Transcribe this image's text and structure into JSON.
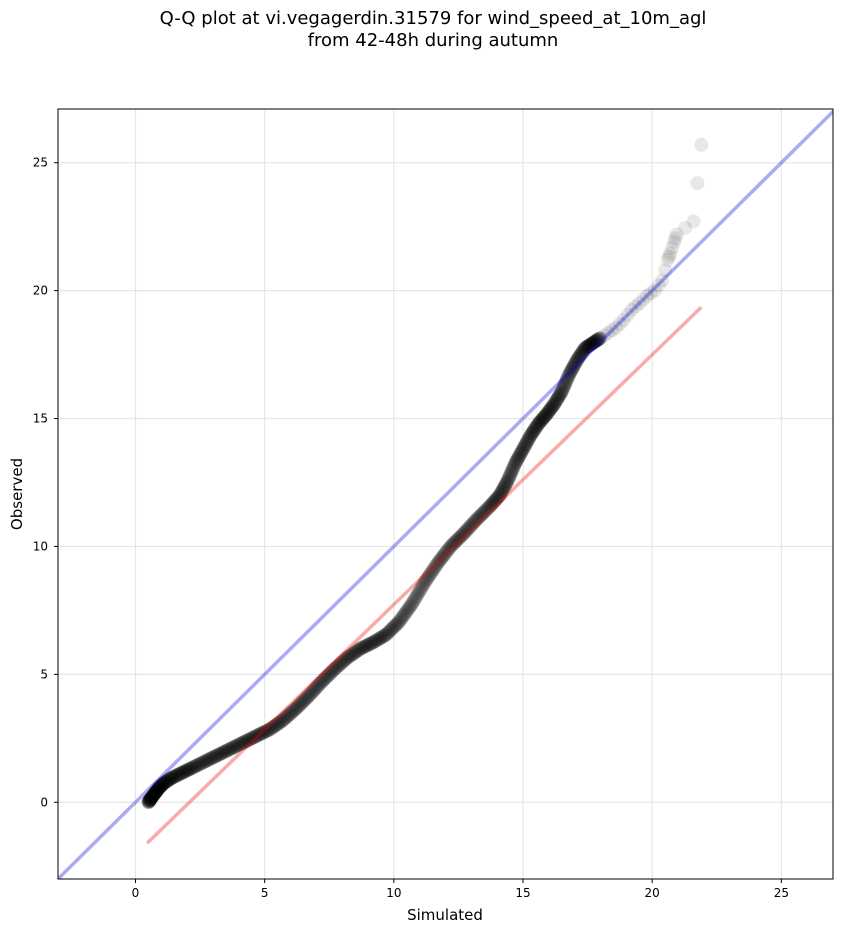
{
  "chart_data": {
    "type": "scatter",
    "title_lines": [
      "Q-Q plot at vi.vegagerdin.31579 for wind_speed_at_10m_agl",
      "from 42-48h during autumn"
    ],
    "xlabel": "Simulated",
    "ylabel": "Observed",
    "xlim": [
      -3,
      27
    ],
    "ylim": [
      -3,
      27.1
    ],
    "xticks": [
      0,
      5,
      10,
      15,
      20,
      25
    ],
    "yticks": [
      0,
      5,
      10,
      15,
      20,
      25
    ],
    "grid": true,
    "identity_line": {
      "color": "#0000dd",
      "from": [
        -3,
        -3
      ],
      "to": [
        27,
        27
      ]
    },
    "fit_line": {
      "color": "#ee0000",
      "from": [
        0.45,
        -1.6
      ],
      "to": [
        21.9,
        19.35
      ]
    },
    "points_color": "#000000",
    "quantiles": {
      "x": [
        0.5,
        0.6,
        0.75,
        0.9,
        1.1,
        1.4,
        1.8,
        2.2,
        2.7,
        3.2,
        3.7,
        4.2,
        4.7,
        5.2,
        5.7,
        6.2,
        6.7,
        7.2,
        7.7,
        8.2,
        8.7,
        9.2,
        9.7,
        10.2,
        10.7,
        11.2,
        11.7,
        12.2,
        12.7,
        13.2,
        13.7,
        14.1,
        14.4,
        14.7,
        15.0,
        15.3,
        15.6,
        15.9,
        16.2,
        16.5,
        16.8,
        17.1,
        17.4,
        17.7,
        18.0,
        18.3,
        18.6,
        18.9,
        19.2,
        19.5,
        19.8,
        20.1,
        20.4,
        20.6,
        20.7,
        20.85,
        20.95,
        21.6,
        21.9
      ],
      "y": [
        0.0,
        0.15,
        0.35,
        0.55,
        0.75,
        0.95,
        1.15,
        1.35,
        1.6,
        1.85,
        2.1,
        2.35,
        2.6,
        2.85,
        3.2,
        3.65,
        4.15,
        4.7,
        5.2,
        5.65,
        6.0,
        6.25,
        6.55,
        7.05,
        7.75,
        8.6,
        9.35,
        10.0,
        10.5,
        11.05,
        11.55,
        12.0,
        12.55,
        13.25,
        13.8,
        14.35,
        14.8,
        15.15,
        15.55,
        16.05,
        16.75,
        17.3,
        17.75,
        17.95,
        18.15,
        18.35,
        18.55,
        18.85,
        19.25,
        19.5,
        19.8,
        20.0,
        20.4,
        21.2,
        21.45,
        21.9,
        22.2,
        22.7,
        25.7
      ]
    }
  }
}
